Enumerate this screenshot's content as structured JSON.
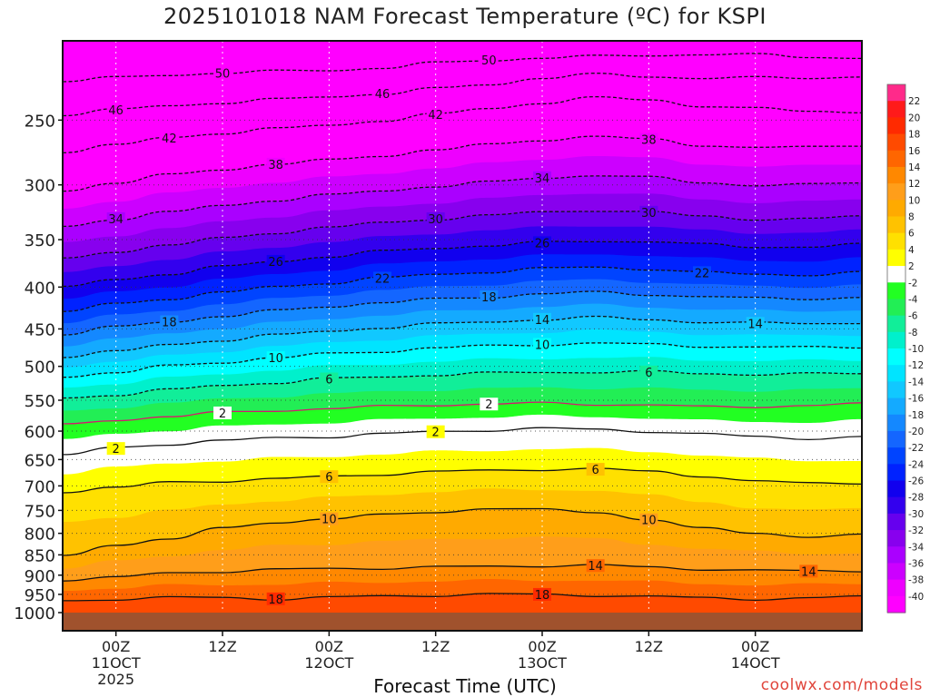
{
  "chart_data": {
    "type": "heatmap",
    "title": "2025101018 NAM Forecast Temperature (ºC) for KSPI",
    "xlabel": "Forecast Time (UTC)",
    "ylabel": "",
    "credit": "coolwx.com/models",
    "y_axis": {
      "scale": "log-pressure",
      "ylim": [
        1000,
        200
      ],
      "ticks": [
        250,
        300,
        350,
        400,
        450,
        500,
        550,
        600,
        650,
        700,
        750,
        800,
        850,
        900,
        950,
        1000
      ]
    },
    "x_axis": {
      "xlim": [
        "2025-10-10 18Z",
        "2025-10-14 12Z"
      ],
      "ticks": [
        {
          "x": "2025-10-11 00Z",
          "label": [
            "00Z",
            "11OCT",
            "2025"
          ]
        },
        {
          "x": "2025-10-11 12Z",
          "label": [
            "12Z"
          ]
        },
        {
          "x": "2025-10-12 00Z",
          "label": [
            "00Z",
            "12OCT"
          ]
        },
        {
          "x": "2025-10-12 12Z",
          "label": [
            "12Z"
          ]
        },
        {
          "x": "2025-10-13 00Z",
          "label": [
            "00Z",
            "13OCT"
          ]
        },
        {
          "x": "2025-10-13 12Z",
          "label": [
            "12Z"
          ]
        },
        {
          "x": "2025-10-14 00Z",
          "label": [
            "00Z",
            "14OCT"
          ]
        }
      ]
    },
    "grid": true,
    "colorbar": {
      "position": "right",
      "labels": [
        22,
        20,
        18,
        16,
        14,
        12,
        10,
        8,
        6,
        4,
        2,
        -2,
        -4,
        -6,
        -8,
        -10,
        -12,
        -14,
        -16,
        -18,
        -20,
        -22,
        -24,
        -26,
        -28,
        -30,
        -32,
        -34,
        -36,
        -38,
        -40
      ],
      "colors": [
        "#ff2a8a",
        "#ff1a1a",
        "#ff2a00",
        "#ff4a00",
        "#ff6600",
        "#ff8800",
        "#ff9e1a",
        "#ffaa00",
        "#ffc200",
        "#ffe000",
        "#ffff00",
        "#ffffff",
        "#22ff22",
        "#22ee55",
        "#11ee99",
        "#00f0cc",
        "#00ffff",
        "#00e4ff",
        "#11c8ff",
        "#14aaff",
        "#1488ff",
        "#1466ff",
        "#0044ff",
        "#0022ff",
        "#1100ee",
        "#3300ee",
        "#6600ee",
        "#8800ee",
        "#aa00ff",
        "#cc00ff",
        "#ee00ff",
        "#ff00ff"
      ]
    },
    "surface": {
      "pressure": 1000,
      "color": "#a0522d"
    },
    "series": [
      {
        "times": [
          0,
          6,
          12,
          18,
          24,
          30,
          36,
          42,
          48,
          54,
          60,
          66,
          72,
          78,
          84,
          90
        ],
        "isotherms": {
          "-50": [
            224,
            222,
            220,
            219,
            218,
            217,
            216,
            213,
            211,
            210,
            209,
            208,
            208,
            208,
            209,
            210
          ],
          "-46": [
            246,
            243,
            240,
            238,
            236,
            234,
            232,
            229,
            226,
            222,
            220,
            221,
            222,
            222,
            222,
            221
          ],
          "-42": [
            273,
            268,
            263,
            259,
            256,
            254,
            250,
            246,
            242,
            238,
            235,
            236,
            240,
            242,
            244,
            244
          ],
          "-38": [
            305,
            298,
            292,
            287,
            283,
            280,
            276,
            272,
            268,
            264,
            262,
            264,
            268,
            270,
            270,
            268
          ],
          "-34": [
            338,
            330,
            324,
            318,
            313,
            309,
            305,
            301,
            298,
            294,
            292,
            294,
            298,
            300,
            300,
            298
          ],
          "-30": [
            370,
            362,
            355,
            349,
            343,
            338,
            334,
            330,
            327,
            324,
            322,
            324,
            328,
            330,
            330,
            328
          ],
          "-26": [
            400,
            392,
            385,
            378,
            372,
            367,
            362,
            358,
            356,
            353,
            351,
            352,
            355,
            357,
            357,
            355
          ],
          "-22": [
            428,
            420,
            413,
            406,
            400,
            395,
            390,
            386,
            383,
            380,
            378,
            380,
            384,
            386,
            386,
            384
          ],
          "-18": [
            456,
            448,
            441,
            434,
            428,
            422,
            418,
            414,
            411,
            408,
            406,
            408,
            411,
            413,
            413,
            412
          ],
          "-14": [
            486,
            479,
            471,
            464,
            458,
            453,
            448,
            444,
            441,
            438,
            436,
            438,
            441,
            443,
            443,
            442
          ],
          "-10": [
            515,
            508,
            500,
            494,
            488,
            483,
            479,
            475,
            472,
            470,
            469,
            470,
            472,
            474,
            474,
            473
          ],
          "-6": [
            548,
            541,
            534,
            528,
            523,
            518,
            515,
            512,
            510,
            508,
            508,
            508,
            510,
            511,
            511,
            510
          ],
          "-2": [
            590,
            582,
            575,
            570,
            566,
            563,
            560,
            557,
            556,
            555,
            556,
            557,
            561,
            560,
            558,
            556
          ],
          "2": [
            640,
            630,
            622,
            616,
            612,
            609,
            605,
            601,
            598,
            596,
            597,
            600,
            605,
            610,
            612,
            610
          ],
          "6": [
            712,
            702,
            694,
            690,
            686,
            682,
            677,
            673,
            670,
            668,
            668,
            672,
            680,
            690,
            696,
            694
          ],
          "10": [
            850,
            830,
            810,
            790,
            775,
            768,
            760,
            752,
            748,
            748,
            752,
            770,
            790,
            800,
            806,
            804
          ],
          "14": [
            912,
            904,
            896,
            890,
            886,
            884,
            882,
            880,
            878,
            876,
            876,
            880,
            884,
            888,
            890,
            888
          ],
          "18": [
            970,
            962,
            958,
            960,
            962,
            958,
            955,
            952,
            950,
            950,
            952,
            956,
            960,
            962,
            960,
            956
          ]
        }
      }
    ],
    "annotations": {
      "contour_labels": [
        "-50",
        "-46",
        "-42",
        "-38",
        "-34",
        "-30",
        "-26",
        "-22",
        "-18",
        "-14",
        "-10",
        "-6",
        "-2",
        "2",
        "6",
        "10",
        "14",
        "18"
      ]
    }
  }
}
